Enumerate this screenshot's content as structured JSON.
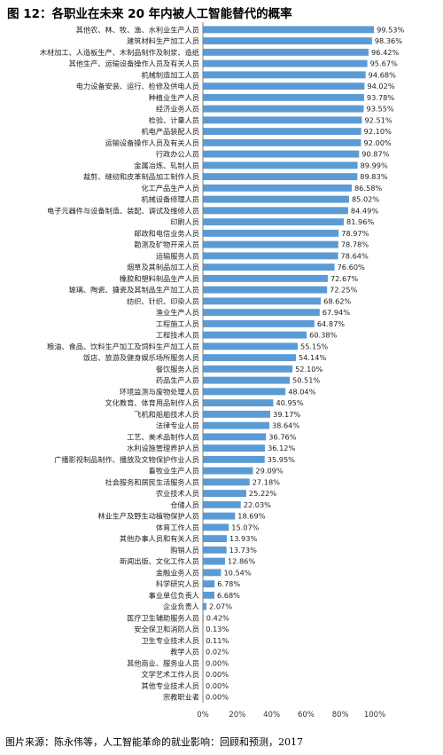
{
  "title": "图 12：各职业在未来 20 年内被人工智能替代的概率",
  "source": "图片来源：陈永伟等，人工智能革命的就业影响：回顾和预测，2017",
  "colors": {
    "bar": "#5b9bd5",
    "axis": "#7f7f7f",
    "grid": "#d9d9d9"
  },
  "chart_data": {
    "type": "bar",
    "orientation": "horizontal",
    "title": "图 12：各职业在未来 20 年内被人工智能替代的概率",
    "xlim": [
      0,
      100
    ],
    "xticks": [
      "0%",
      "20%",
      "40%",
      "60%",
      "80%",
      "100%"
    ],
    "grid": false,
    "categories": [
      "其他农、林、牧、渔、水利业生产人员",
      "建筑材料生产加工人员",
      "木材加工、人造板生产、木制品制作及制浆、造纸",
      "其他生产、运输设备操作人员及有关人员",
      "机械制造加工人员",
      "电力设备安装、运行、检修及供电人员",
      "种植业生产人员",
      "经济业务人员",
      "检验、计量人员",
      "机电产品装配人员",
      "运输设备操作人员及有关人员",
      "行政办公人员",
      "金属冶炼、轧制人员",
      "裁剪、缝纫和皮革制品加工制作人员",
      "化工产品生产人员",
      "机械设备修理人员",
      "电子元器件与设备制造、装配、调试及维修人员",
      "印刷人员",
      "邮政和电信业务人员",
      "勘测及矿物开采人员",
      "运输服务人员",
      "烟草及其制品加工人员",
      "橡胶和塑料制品生产人员",
      "玻璃、陶瓷、搪瓷及其制品生产加工人员",
      "纺织、针织、印染人员",
      "渔业生产人员",
      "工程施工人员",
      "工程技术人员",
      "粮油、食品、饮料生产加工及饲料生产加工人员",
      "饭店、旅游及健身娱乐场所服务人员",
      "餐饮服务人员",
      "药品生产人员",
      "环境监测与废物处理人员",
      "文化教育、体育用品制作人员",
      "飞机和船舶技术人员",
      "法律专业人员",
      "工艺、美术品制作人员",
      "水利设施管理养护人员",
      "广播影视制品制作、播放及文物保护作业人员",
      "畜牧业生产人员",
      "社会服务和居民生活服务人员",
      "农业技术人员",
      "仓储人员",
      "林业生产及野生动植物保护人员",
      "体育工作人员",
      "其他办事人员和有关人员",
      "购销人员",
      "新闻出版、文化工作人员",
      "金融业务人员",
      "科学研究人员",
      "事业单位负责人",
      "企业负责人",
      "医疗卫生辅助服务人员",
      "安全保卫和消防人员",
      "卫生专业技术人员",
      "教学人员",
      "其他商业、服务业人员",
      "文学艺术工作人员",
      "其他专业技术人员",
      "宗教职业者"
    ],
    "values": [
      99.53,
      98.36,
      96.42,
      95.67,
      94.68,
      94.02,
      93.78,
      93.55,
      92.51,
      92.1,
      92.0,
      90.87,
      89.99,
      89.83,
      86.58,
      85.02,
      84.49,
      81.96,
      78.97,
      78.78,
      78.64,
      76.6,
      72.67,
      72.25,
      68.62,
      67.94,
      64.87,
      60.38,
      55.15,
      54.14,
      52.1,
      50.51,
      48.04,
      40.95,
      39.17,
      38.64,
      36.76,
      36.12,
      35.95,
      29.09,
      27.18,
      25.22,
      22.03,
      18.69,
      15.07,
      13.93,
      13.73,
      12.86,
      10.54,
      6.78,
      6.68,
      2.07,
      0.42,
      0.13,
      0.11,
      0.02,
      0.0,
      0.0,
      0.0,
      0.0
    ],
    "value_labels": [
      "99.53%",
      "98.36%",
      "96.42%",
      "95.67%",
      "94.68%",
      "94.02%",
      "93.78%",
      "93.55%",
      "92.51%",
      "92.10%",
      "92.00%",
      "90.87%",
      "89.99%",
      "89.83%",
      "86.58%",
      "85.02%",
      "84.49%",
      "81.96%",
      "78.97%",
      "78.78%",
      "78.64%",
      "76.60%",
      "72.67%",
      "72.25%",
      "68.62%",
      "67.94%",
      "64.87%",
      "60.38%",
      "55.15%",
      "54.14%",
      "52.10%",
      "50.51%",
      "48.04%",
      "40.95%",
      "39.17%",
      "38.64%",
      "36.76%",
      "36.12%",
      "35.95%",
      "29.09%",
      "27.18%",
      "25.22%",
      "22.03%",
      "18.69%",
      "15.07%",
      "13.93%",
      "13.73%",
      "12.86%",
      "10.54%",
      "6.78%",
      "6.68%",
      "2.07%",
      "0.42%",
      "0.13%",
      "0.11%",
      "0.02%",
      "0.00%",
      "0.00%",
      "0.00%",
      "0.00%"
    ]
  }
}
